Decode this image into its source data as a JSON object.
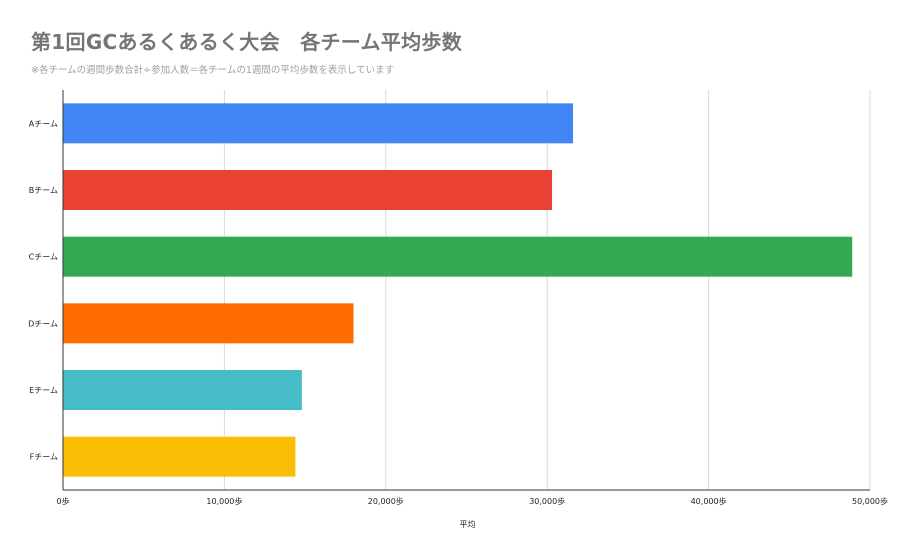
{
  "title": "第1回GCあるくあるく大会　各チーム平均歩数",
  "subtitle": "※各チームの週間歩数合計÷参加人数＝各チームの1週間の平均歩数を表示しています",
  "chart_data": {
    "type": "bar",
    "orientation": "horizontal",
    "categories": [
      "Aチーム",
      "Bチーム",
      "Cチーム",
      "Dチーム",
      "Eチーム",
      "Fチーム"
    ],
    "values": [
      31600,
      30300,
      48900,
      18000,
      14800,
      14400
    ],
    "colors": [
      "#4285f4",
      "#ea4335",
      "#34a853",
      "#ff6d00",
      "#46bdc6",
      "#fbbc04"
    ],
    "xlabel": "平均",
    "ylabel": "",
    "xlim": [
      0,
      50000
    ],
    "xticks": [
      0,
      10000,
      20000,
      30000,
      40000,
      50000
    ],
    "xtick_labels": [
      "0歩",
      "10,000歩",
      "20,000歩",
      "30,000歩",
      "40,000歩",
      "50,000歩"
    ],
    "grid": true,
    "legend": "none"
  }
}
